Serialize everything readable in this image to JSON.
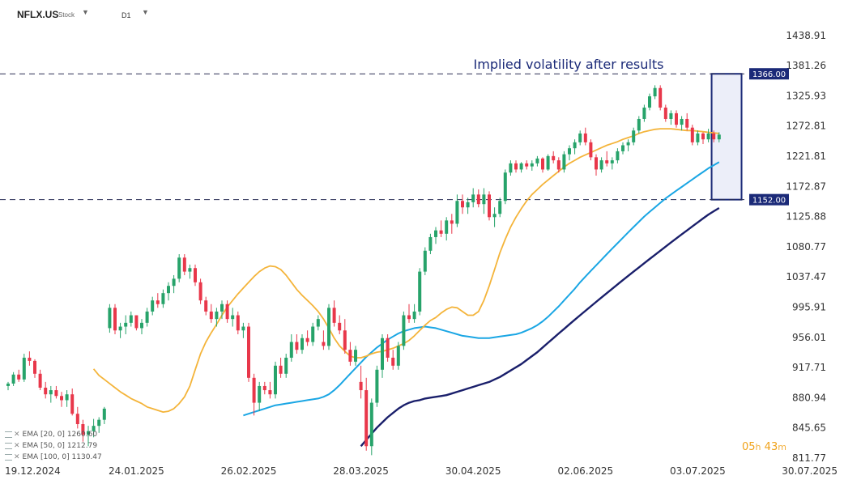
{
  "header": {
    "symbol": "NFLX.US",
    "symbol_type": "Stock",
    "timeframe": "D1"
  },
  "timer": {
    "hours": "05",
    "hours_unit": "h",
    "minutes": "43",
    "minutes_unit": "m"
  },
  "legend": [
    {
      "label": "EMA [20, 0]",
      "value": "1260.60"
    },
    {
      "label": "EMA [50, 0]",
      "value": "1212.79"
    },
    {
      "label": "EMA [100, 0]",
      "value": "1130.47"
    }
  ],
  "colors": {
    "bull": "#27a36a",
    "bear": "#e8374a",
    "ema20": "#f4b43a",
    "ema50": "#1aa6e4",
    "ema100": "#1a1f6b",
    "level": "#1b2a78",
    "box_fill": "#eceef9"
  },
  "chart_data": {
    "type": "candlestick",
    "title": "Implied volatility after results",
    "ylim": [
      811.77,
      1464
    ],
    "y_ticks": [
      "1438.91",
      "1381.26",
      "1325.93",
      "1272.81",
      "1221.81",
      "1172.87",
      "1125.88",
      "1080.77",
      "1037.47",
      "995.91",
      "956.01",
      "917.71",
      "880.94",
      "845.65",
      "811.77"
    ],
    "x_ticks": [
      "19.12.2024",
      "24.01.2025",
      "26.02.2025",
      "28.03.2025",
      "30.04.2025",
      "02.06.2025",
      "03.07.2025",
      "30.07.2025"
    ],
    "x_tick_index": [
      0,
      24,
      45,
      66,
      87,
      108,
      129,
      148
    ],
    "levels": [
      {
        "value": 1366.0,
        "label": "1366.00"
      },
      {
        "value": 1152.0,
        "label": "1152.00"
      }
    ],
    "range_box": {
      "from_index": 131.6,
      "to_index": 137.2,
      "top": 1366.0,
      "bottom": 1152.0,
      "label": "Implied volatility after results"
    },
    "candles": [
      [
        895,
        900,
        890,
        898
      ],
      [
        898,
        912,
        895,
        909
      ],
      [
        909,
        915,
        900,
        903
      ],
      [
        903,
        935,
        900,
        930
      ],
      [
        930,
        938,
        920,
        926
      ],
      [
        926,
        928,
        905,
        910
      ],
      [
        910,
        915,
        890,
        893
      ],
      [
        893,
        900,
        880,
        885
      ],
      [
        885,
        895,
        875,
        890
      ],
      [
        890,
        895,
        880,
        883
      ],
      [
        883,
        888,
        870,
        878
      ],
      [
        878,
        890,
        870,
        885
      ],
      [
        885,
        892,
        860,
        862
      ],
      [
        862,
        870,
        845,
        850
      ],
      [
        850,
        855,
        830,
        838
      ],
      [
        838,
        848,
        825,
        842
      ],
      [
        842,
        856,
        835,
        848
      ],
      [
        848,
        858,
        840,
        855
      ],
      [
        855,
        870,
        850,
        868
      ],
      [
        968,
        1000,
        962,
        995
      ],
      [
        995,
        1000,
        960,
        965
      ],
      [
        965,
        975,
        955,
        970
      ],
      [
        970,
        985,
        960,
        975
      ],
      [
        975,
        990,
        970,
        985
      ],
      [
        985,
        985,
        965,
        968
      ],
      [
        968,
        980,
        960,
        975
      ],
      [
        975,
        995,
        970,
        990
      ],
      [
        990,
        1010,
        985,
        1005
      ],
      [
        1005,
        1015,
        995,
        1000
      ],
      [
        1000,
        1020,
        995,
        1015
      ],
      [
        1015,
        1030,
        1005,
        1025
      ],
      [
        1025,
        1040,
        1015,
        1035
      ],
      [
        1035,
        1070,
        1030,
        1065
      ],
      [
        1065,
        1070,
        1040,
        1045
      ],
      [
        1045,
        1055,
        1035,
        1050
      ],
      [
        1050,
        1055,
        1025,
        1030
      ],
      [
        1030,
        1035,
        1000,
        1005
      ],
      [
        1005,
        1010,
        985,
        990
      ],
      [
        990,
        1000,
        975,
        980
      ],
      [
        980,
        995,
        970,
        990
      ],
      [
        990,
        1005,
        980,
        1000
      ],
      [
        1000,
        1005,
        975,
        980
      ],
      [
        980,
        995,
        970,
        985
      ],
      [
        985,
        990,
        960,
        965
      ],
      [
        965,
        975,
        955,
        970
      ],
      [
        970,
        975,
        900,
        905
      ],
      [
        905,
        910,
        860,
        875
      ],
      [
        875,
        900,
        865,
        895
      ],
      [
        895,
        900,
        885,
        890
      ],
      [
        890,
        900,
        880,
        885
      ],
      [
        885,
        925,
        880,
        920
      ],
      [
        920,
        930,
        905,
        910
      ],
      [
        910,
        935,
        905,
        930
      ],
      [
        930,
        960,
        925,
        950
      ],
      [
        950,
        960,
        935,
        940
      ],
      [
        940,
        960,
        935,
        955
      ],
      [
        955,
        965,
        945,
        950
      ],
      [
        950,
        975,
        945,
        970
      ],
      [
        970,
        985,
        965,
        980
      ],
      [
        950,
        965,
        940,
        945
      ],
      [
        945,
        1000,
        940,
        995
      ],
      [
        995,
        1005,
        970,
        975
      ],
      [
        975,
        985,
        960,
        965
      ],
      [
        965,
        980,
        935,
        940
      ],
      [
        940,
        950,
        920,
        925
      ],
      [
        925,
        945,
        920,
        940
      ],
      [
        900,
        920,
        880,
        890
      ],
      [
        890,
        905,
        820,
        825
      ],
      [
        825,
        880,
        815,
        875
      ],
      [
        875,
        920,
        870,
        915
      ],
      [
        915,
        960,
        905,
        955
      ],
      [
        955,
        960,
        925,
        930
      ],
      [
        930,
        940,
        915,
        920
      ],
      [
        920,
        950,
        915,
        945
      ],
      [
        945,
        990,
        940,
        985
      ],
      [
        985,
        1000,
        975,
        980
      ],
      [
        980,
        1000,
        975,
        990
      ],
      [
        990,
        1050,
        985,
        1045
      ],
      [
        1045,
        1080,
        1040,
        1075
      ],
      [
        1075,
        1100,
        1070,
        1095
      ],
      [
        1095,
        1110,
        1085,
        1105
      ],
      [
        1105,
        1120,
        1095,
        1100
      ],
      [
        1100,
        1125,
        1090,
        1120
      ],
      [
        1120,
        1130,
        1100,
        1115
      ],
      [
        1115,
        1160,
        1110,
        1150
      ],
      [
        1150,
        1160,
        1130,
        1140
      ],
      [
        1140,
        1155,
        1130,
        1148
      ],
      [
        1148,
        1170,
        1140,
        1160
      ],
      [
        1160,
        1168,
        1140,
        1145
      ],
      [
        1145,
        1170,
        1130,
        1160
      ],
      [
        1160,
        1165,
        1120,
        1125
      ],
      [
        1125,
        1140,
        1110,
        1130
      ],
      [
        1130,
        1155,
        1125,
        1150
      ],
      [
        1150,
        1200,
        1145,
        1195
      ],
      [
        1195,
        1215,
        1190,
        1210
      ],
      [
        1210,
        1215,
        1195,
        1200
      ],
      [
        1200,
        1212,
        1195,
        1210
      ],
      [
        1210,
        1215,
        1200,
        1205
      ],
      [
        1205,
        1215,
        1198,
        1210
      ],
      [
        1210,
        1222,
        1205,
        1218
      ],
      [
        1218,
        1220,
        1195,
        1200
      ],
      [
        1200,
        1225,
        1198,
        1222
      ],
      [
        1222,
        1230,
        1210,
        1215
      ],
      [
        1215,
        1220,
        1195,
        1200
      ],
      [
        1200,
        1230,
        1195,
        1225
      ],
      [
        1225,
        1240,
        1215,
        1235
      ],
      [
        1235,
        1250,
        1225,
        1245
      ],
      [
        1245,
        1265,
        1240,
        1260
      ],
      [
        1260,
        1270,
        1240,
        1245
      ],
      [
        1245,
        1250,
        1215,
        1220
      ],
      [
        1220,
        1225,
        1190,
        1200
      ],
      [
        1200,
        1220,
        1195,
        1215
      ],
      [
        1215,
        1230,
        1205,
        1210
      ],
      [
        1210,
        1220,
        1200,
        1215
      ],
      [
        1215,
        1235,
        1210,
        1230
      ],
      [
        1230,
        1245,
        1225,
        1240
      ],
      [
        1240,
        1250,
        1230,
        1245
      ],
      [
        1245,
        1270,
        1240,
        1265
      ],
      [
        1265,
        1290,
        1260,
        1285
      ],
      [
        1285,
        1310,
        1280,
        1305
      ],
      [
        1305,
        1330,
        1300,
        1325
      ],
      [
        1325,
        1345,
        1320,
        1340
      ],
      [
        1340,
        1345,
        1300,
        1305
      ],
      [
        1305,
        1310,
        1280,
        1285
      ],
      [
        1285,
        1300,
        1275,
        1295
      ],
      [
        1295,
        1300,
        1270,
        1275
      ],
      [
        1275,
        1290,
        1265,
        1285
      ],
      [
        1285,
        1295,
        1265,
        1270
      ],
      [
        1270,
        1275,
        1240,
        1245
      ],
      [
        1245,
        1265,
        1240,
        1260
      ],
      [
        1260,
        1262,
        1242,
        1250
      ],
      [
        1250,
        1268,
        1245,
        1260
      ],
      [
        1260,
        1265,
        1245,
        1250
      ],
      [
        1250,
        1262,
        1245,
        1258
      ]
    ],
    "ema20": [
      916,
      908,
      903,
      898,
      893,
      888,
      884,
      880,
      877,
      874,
      870,
      868,
      866,
      864,
      865,
      868,
      874,
      882,
      895,
      915,
      935,
      950,
      962,
      973,
      985,
      996,
      1005,
      1014,
      1022,
      1030,
      1038,
      1045,
      1050,
      1053,
      1052,
      1048,
      1040,
      1030,
      1020,
      1012,
      1005,
      998,
      990,
      980,
      968,
      955,
      945,
      938,
      932,
      930,
      930,
      932,
      935,
      937,
      938,
      940,
      942,
      945,
      948,
      952,
      958,
      965,
      972,
      978,
      982,
      988,
      993,
      996,
      995,
      990,
      985,
      985,
      990,
      1005,
      1025,
      1048,
      1072,
      1092,
      1110,
      1125,
      1138,
      1150,
      1160,
      1168,
      1176,
      1183,
      1190,
      1197,
      1204,
      1210,
      1215,
      1220,
      1224,
      1228,
      1232,
      1236,
      1240,
      1243,
      1246,
      1250,
      1253,
      1256,
      1260,
      1263,
      1265,
      1267,
      1268,
      1268,
      1268,
      1267,
      1266,
      1265,
      1265,
      1264,
      1263,
      1262,
      1261,
      1260
    ],
    "ema50": [
      860,
      862,
      864,
      866,
      868,
      870,
      872,
      873,
      874,
      875,
      876,
      877,
      878,
      879,
      880,
      882,
      885,
      890,
      896,
      903,
      910,
      917,
      924,
      931,
      937,
      943,
      948,
      953,
      957,
      961,
      964,
      966,
      968,
      969,
      970,
      969,
      968,
      966,
      964,
      962,
      960,
      958,
      957,
      956,
      955,
      955,
      955,
      956,
      957,
      958,
      959,
      960,
      962,
      965,
      968,
      972,
      977,
      983,
      990,
      997,
      1005,
      1013,
      1021,
      1030,
      1038,
      1046,
      1054,
      1062,
      1070,
      1078,
      1086,
      1094,
      1102,
      1110,
      1118,
      1126,
      1133,
      1140,
      1147,
      1154,
      1160,
      1166,
      1172,
      1178,
      1184,
      1190,
      1196,
      1202,
      1207,
      1212
    ],
    "ema100": [
      825,
      832,
      839,
      846,
      852,
      858,
      863,
      868,
      872,
      875,
      877,
      878,
      880,
      881,
      882,
      883,
      884,
      886,
      888,
      890,
      892,
      894,
      896,
      898,
      900,
      903,
      906,
      910,
      914,
      918,
      922,
      927,
      932,
      937,
      943,
      949,
      955,
      961,
      967,
      973,
      979,
      985,
      991,
      997,
      1003,
      1009,
      1015,
      1021,
      1027,
      1033,
      1039,
      1045,
      1051,
      1057,
      1063,
      1069,
      1075,
      1081,
      1087,
      1093,
      1099,
      1105,
      1111,
      1117,
      1123,
      1129,
      1134,
      1139
    ]
  }
}
